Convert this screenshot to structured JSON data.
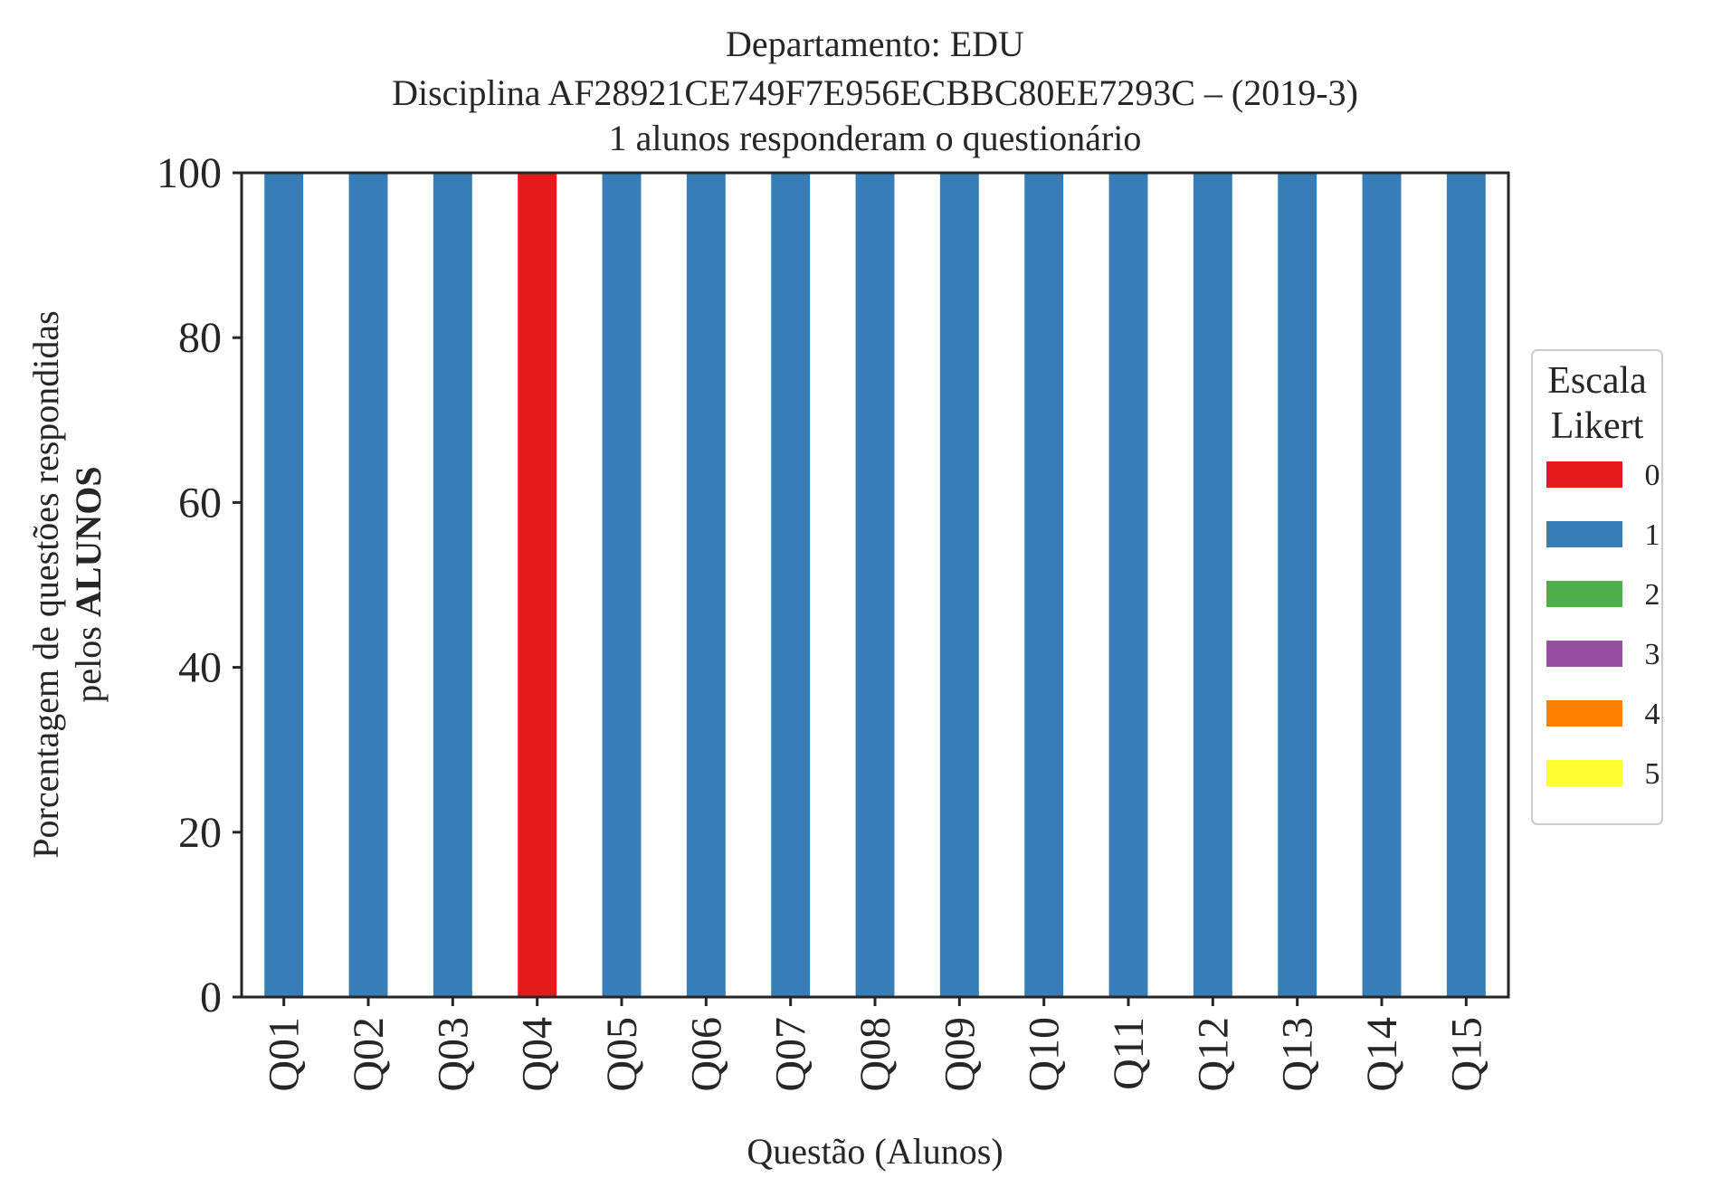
{
  "chart_data": {
    "type": "bar",
    "stacked": true,
    "title_lines": [
      "Departamento: EDU",
      "Disciplina AF28921CE749F7E956ECBBC80EE7293C – (2019-3)",
      "1 alunos responderam o questionário"
    ],
    "xlabel": "Questão (Alunos)",
    "ylabel_line1": "Porcentagem de questões respondidas",
    "ylabel_line2_prefix": "pelos ",
    "ylabel_line2_bold": "ALUNOS",
    "ylim": [
      0,
      100
    ],
    "yticks": [
      "0",
      "20",
      "40",
      "60",
      "80",
      "100"
    ],
    "grid": false,
    "categories": [
      "Q01",
      "Q02",
      "Q03",
      "Q04",
      "Q05",
      "Q06",
      "Q07",
      "Q08",
      "Q09",
      "Q10",
      "Q11",
      "Q12",
      "Q13",
      "Q14",
      "Q15"
    ],
    "series": [
      {
        "name": "0",
        "color": "#e41a1c",
        "values": [
          0,
          0,
          0,
          100,
          0,
          0,
          0,
          0,
          0,
          0,
          0,
          0,
          0,
          0,
          0
        ]
      },
      {
        "name": "1",
        "color": "#377eb8",
        "values": [
          100,
          100,
          100,
          0,
          100,
          100,
          100,
          100,
          100,
          100,
          100,
          100,
          100,
          100,
          100
        ]
      },
      {
        "name": "2",
        "color": "#4daf4a",
        "values": [
          0,
          0,
          0,
          0,
          0,
          0,
          0,
          0,
          0,
          0,
          0,
          0,
          0,
          0,
          0
        ]
      },
      {
        "name": "3",
        "color": "#984ea3",
        "values": [
          0,
          0,
          0,
          0,
          0,
          0,
          0,
          0,
          0,
          0,
          0,
          0,
          0,
          0,
          0
        ]
      },
      {
        "name": "4",
        "color": "#ff7f00",
        "values": [
          0,
          0,
          0,
          0,
          0,
          0,
          0,
          0,
          0,
          0,
          0,
          0,
          0,
          0,
          0
        ]
      },
      {
        "name": "5",
        "color": "#ffff33",
        "values": [
          0,
          0,
          0,
          0,
          0,
          0,
          0,
          0,
          0,
          0,
          0,
          0,
          0,
          0,
          0
        ]
      }
    ],
    "legend": {
      "title_lines": [
        "Escala",
        "Likert"
      ],
      "placement": "right"
    }
  }
}
